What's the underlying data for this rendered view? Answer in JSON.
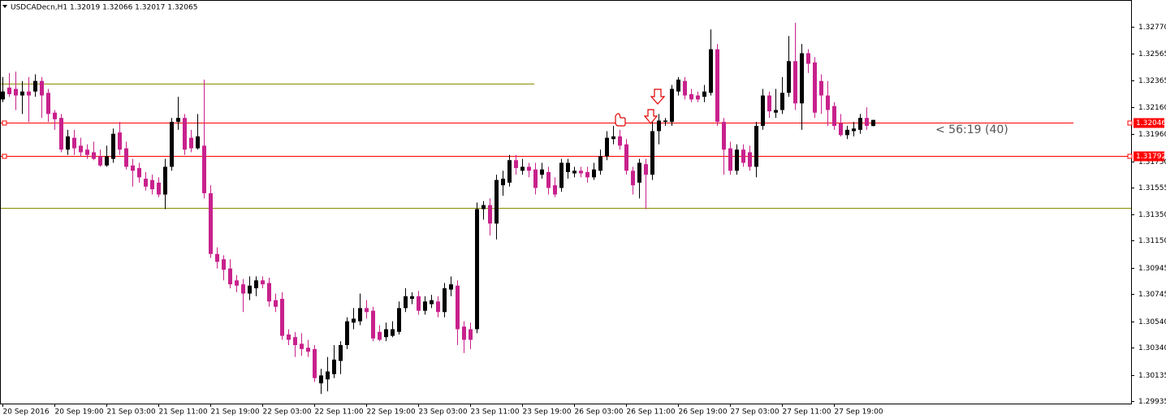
{
  "chart_data": {
    "type": "candlestick",
    "title": "USDCADecn,H1  1.32019 1.32066 1.32017 1.32065",
    "annotation": "< 56:19 (40)",
    "up_color": "#000000",
    "down_color": "#c8218c",
    "ylim": [
      1.29917,
      1.32973
    ],
    "yticks": [
      {
        "value": 1.3277,
        "label": "1.32770"
      },
      1.32565,
      1.32365,
      {
        "value": 1.3216,
        "label": "1.32160"
      },
      {
        "value": 1.3196,
        "label": "1.31960"
      },
      {
        "value": 1.3175,
        "label": "1.31750"
      },
      1.31555,
      {
        "value": 1.3135,
        "label": "1.31350"
      },
      {
        "value": 1.3115,
        "label": "1.31150"
      },
      1.30945,
      1.30745,
      {
        "value": 1.3054,
        "label": "1.30540"
      },
      {
        "value": 1.3034,
        "label": "1.30340"
      },
      1.30135,
      1.29935
    ],
    "hlines": [
      {
        "value": 1.3234,
        "color": "#8b8b00",
        "axis_label": false
      },
      {
        "value": 1.32046,
        "color": "#ff0000",
        "axis_label": true
      },
      {
        "value": 1.31792,
        "color": "#ff0000",
        "axis_label": true
      },
      {
        "value": 1.314,
        "color": "#8b8b00",
        "axis_label": false
      }
    ],
    "categories": [
      "20 Sep 2016",
      null,
      null,
      null,
      null,
      null,
      null,
      null,
      "20 Sep 19:00",
      null,
      null,
      null,
      null,
      null,
      null,
      null,
      "21 Sep 03:00",
      null,
      null,
      null,
      null,
      null,
      null,
      null,
      "21 Sep 11:00",
      null,
      null,
      null,
      null,
      null,
      null,
      null,
      "21 Sep 19:00",
      null,
      null,
      null,
      null,
      null,
      null,
      null,
      "22 Sep 03:00",
      null,
      null,
      null,
      null,
      null,
      null,
      null,
      "22 Sep 11:00",
      null,
      null,
      null,
      null,
      null,
      null,
      null,
      "22 Sep 19:00",
      null,
      null,
      null,
      null,
      null,
      null,
      null,
      "23 Sep 03:00",
      null,
      null,
      null,
      null,
      null,
      null,
      null,
      "23 Sep 11:00",
      null,
      null,
      null,
      null,
      null,
      null,
      null,
      "23 Sep 19:00",
      null,
      null,
      null,
      null,
      null,
      null,
      null,
      "26 Sep 03:00",
      null,
      null,
      null,
      null,
      null,
      null,
      null,
      "26 Sep 11:00",
      null,
      null,
      null,
      null,
      null,
      null,
      null,
      "26 Sep 19:00",
      null,
      null,
      null,
      null,
      null,
      null,
      null,
      "27 Sep 03:00",
      null,
      null,
      null,
      null,
      null,
      null,
      null,
      "27 Sep 11:00",
      null,
      null,
      null,
      null,
      null,
      null,
      null,
      "27 Sep 19:00",
      null,
      null,
      null,
      null,
      null,
      null
    ],
    "open": [
      1.3222,
      1.3231,
      1.323,
      1.3225,
      1.3228,
      1.3228,
      1.3236,
      1.3227,
      1.3212,
      1.3208,
      1.3184,
      1.3193,
      1.3187,
      1.3184,
      1.3182,
      1.3179,
      1.3172,
      1.3177,
      1.3197,
      1.3185,
      1.3172,
      1.317,
      1.3162,
      1.3161,
      1.3159,
      1.315,
      1.3171,
      1.3205,
      1.3208,
      1.3193,
      1.3185,
      1.3187,
      1.3151,
      1.3105,
      1.3101,
      1.3094,
      1.3085,
      1.3082,
      1.3075,
      1.3079,
      1.3085,
      1.3083,
      1.307,
      1.3071,
      1.3044,
      1.3042,
      1.3037,
      1.3034,
      1.3033,
      1.3007,
      1.301,
      1.3014,
      1.3024,
      1.3036,
      1.3053,
      1.3054,
      1.3064,
      1.3062,
      1.3046,
      1.3042,
      1.3043,
      1.3046,
      1.3064,
      1.3071,
      1.3073,
      1.3062,
      1.3067,
      1.3069,
      1.3061,
      1.3078,
      1.3081,
      1.305,
      1.3048,
      1.3048,
      1.3139,
      1.3142,
      1.3128,
      1.3157,
      1.3159,
      1.3176,
      1.3168,
      1.3171,
      1.3169,
      1.3165,
      1.3167,
      1.3157,
      1.3155,
      1.3167,
      1.3166,
      1.3168,
      1.3167,
      1.3163,
      1.3168,
      1.3179,
      1.3192,
      1.3194,
      1.3188,
      1.3168,
      1.3159,
      1.3173,
      1.3165,
      1.3198,
      1.3205,
      1.3205,
      1.3228,
      1.3236,
      1.3226,
      1.3225,
      1.3224,
      1.3227,
      1.326,
      1.3205,
      1.3185,
      1.3168,
      1.3184,
      1.3182,
      1.3171,
      1.3202,
      1.3225,
      1.3212,
      1.3214,
      1.3227,
      1.3251,
      1.3219,
      1.3257,
      1.325,
      1.3236,
      1.3225,
      1.3217,
      1.3204,
      1.3195,
      1.3198,
      1.3199,
      1.3208,
      1.32019
    ],
    "high": [
      1.3239,
      1.3242,
      1.3243,
      1.3236,
      1.3239,
      1.3241,
      1.3239,
      1.323,
      1.3214,
      1.3211,
      1.3199,
      1.3199,
      1.3193,
      1.3188,
      1.319,
      1.3184,
      1.3187,
      1.32,
      1.3205,
      1.319,
      1.3177,
      1.3174,
      1.3167,
      1.3165,
      1.3163,
      1.3177,
      1.3208,
      1.3224,
      1.3211,
      1.3199,
      1.3211,
      1.3237,
      1.3157,
      1.311,
      1.3104,
      1.3101,
      1.3089,
      1.3086,
      1.3088,
      1.3088,
      1.3088,
      1.3087,
      1.3075,
      1.3076,
      1.3048,
      1.3046,
      1.3045,
      1.304,
      1.3036,
      1.3018,
      1.3027,
      1.3036,
      1.3039,
      1.3057,
      1.3064,
      1.3075,
      1.307,
      1.3065,
      1.3051,
      1.3053,
      1.3054,
      1.3069,
      1.3079,
      1.3076,
      1.3077,
      1.3073,
      1.3074,
      1.3073,
      1.3083,
      1.3088,
      1.3085,
      1.3054,
      1.3053,
      1.3144,
      1.3145,
      1.3147,
      1.3165,
      1.3168,
      1.318,
      1.318,
      1.3177,
      1.3174,
      1.3174,
      1.3174,
      1.3171,
      1.3163,
      1.3177,
      1.3177,
      1.3171,
      1.3171,
      1.3171,
      1.3174,
      1.3184,
      1.3198,
      1.3202,
      1.3199,
      1.3192,
      1.3171,
      1.3177,
      1.3177,
      1.3205,
      1.3211,
      1.3208,
      1.3233,
      1.3239,
      1.3239,
      1.323,
      1.3228,
      1.3233,
      1.3275,
      1.3264,
      1.3208,
      1.319,
      1.3188,
      1.3188,
      1.3187,
      1.3205,
      1.323,
      1.3228,
      1.323,
      1.3239,
      1.327,
      1.328,
      1.3264,
      1.326,
      1.3254,
      1.3241,
      1.3236,
      1.322,
      1.3211,
      1.3202,
      1.3205,
      1.3211,
      1.3216,
      1.32066
    ],
    "low": [
      1.322,
      1.3224,
      1.3214,
      1.3211,
      1.3205,
      1.3224,
      1.3208,
      1.3205,
      1.3199,
      1.3182,
      1.318,
      1.318,
      1.3179,
      1.3177,
      1.3176,
      1.3171,
      1.3171,
      1.3174,
      1.318,
      1.3169,
      1.3156,
      1.3159,
      1.3153,
      1.315,
      1.3148,
      1.3139,
      1.3168,
      1.3199,
      1.318,
      1.3182,
      1.3184,
      1.3147,
      1.3102,
      1.3094,
      1.3085,
      1.3079,
      1.3076,
      1.3061,
      1.307,
      1.3073,
      1.3079,
      1.3065,
      1.3061,
      1.304,
      1.3036,
      1.3027,
      1.3028,
      1.3027,
      1.3008,
      1.2999,
      1.3001,
      1.3011,
      1.3014,
      1.3033,
      1.3048,
      1.3051,
      1.3056,
      1.3039,
      1.3039,
      1.3039,
      1.3042,
      1.3044,
      1.3061,
      1.3067,
      1.3059,
      1.3059,
      1.3064,
      1.3057,
      1.3057,
      1.3073,
      1.3036,
      1.303,
      1.3033,
      1.3045,
      1.3131,
      1.3119,
      1.3116,
      1.3149,
      1.3156,
      1.3165,
      1.3165,
      1.3163,
      1.315,
      1.3162,
      1.315,
      1.3148,
      1.3152,
      1.3162,
      1.3163,
      1.3163,
      1.3159,
      1.3161,
      1.3165,
      1.3176,
      1.3188,
      1.3184,
      1.3165,
      1.315,
      1.3147,
      1.3139,
      1.3161,
      1.3188,
      1.3202,
      1.3202,
      1.3225,
      1.3222,
      1.322,
      1.322,
      1.322,
      1.3225,
      1.3202,
      1.3165,
      1.3165,
      1.3165,
      1.3171,
      1.3168,
      1.3163,
      1.3199,
      1.3208,
      1.3208,
      1.3211,
      1.3224,
      1.3214,
      1.3199,
      1.3242,
      1.3208,
      1.3211,
      1.3202,
      1.3199,
      1.3194,
      1.3192,
      1.3194,
      1.3196,
      1.3199,
      1.32017
    ],
    "close": [
      1.3228,
      1.3226,
      1.3225,
      1.3228,
      1.3225,
      1.3236,
      1.3225,
      1.3211,
      1.3207,
      1.3184,
      1.3194,
      1.3185,
      1.3182,
      1.318,
      1.3177,
      1.3172,
      1.3179,
      1.3196,
      1.3184,
      1.3171,
      1.3168,
      1.3163,
      1.3156,
      1.3154,
      1.315,
      1.3171,
      1.3205,
      1.3208,
      1.3184,
      1.3185,
      1.3194,
      1.3151,
      1.3105,
      1.3099,
      1.3093,
      1.3082,
      1.3081,
      1.3075,
      1.3081,
      1.3085,
      1.3082,
      1.3069,
      1.3065,
      1.3043,
      1.304,
      1.3036,
      1.3033,
      1.3031,
      1.3011,
      1.3013,
      1.3016,
      1.3025,
      1.3036,
      1.3054,
      1.3056,
      1.3064,
      1.3061,
      1.3041,
      1.304,
      1.3048,
      1.3048,
      1.3064,
      1.3073,
      1.3073,
      1.3062,
      1.3069,
      1.307,
      1.3061,
      1.3079,
      1.3082,
      1.3048,
      1.304,
      1.304,
      1.3139,
      1.3142,
      1.3128,
      1.3161,
      1.3162,
      1.3176,
      1.317,
      1.3171,
      1.3168,
      1.3155,
      1.3169,
      1.3155,
      1.315,
      1.3174,
      1.3174,
      1.3168,
      1.3166,
      1.3163,
      1.3169,
      1.3179,
      1.3193,
      1.3194,
      1.3187,
      1.3168,
      1.3157,
      1.3174,
      1.3165,
      1.3198,
      1.3206,
      1.3206,
      1.323,
      1.3237,
      1.3225,
      1.3222,
      1.3222,
      1.3228,
      1.326,
      1.3205,
      1.3184,
      1.3168,
      1.3184,
      1.3174,
      1.3171,
      1.3202,
      1.3225,
      1.3213,
      1.3214,
      1.3227,
      1.3251,
      1.3219,
      1.3257,
      1.3249,
      1.3212,
      1.3225,
      1.3214,
      1.3202,
      1.3195,
      1.3199,
      1.32,
      1.3208,
      1.3202,
      1.32065
    ]
  }
}
